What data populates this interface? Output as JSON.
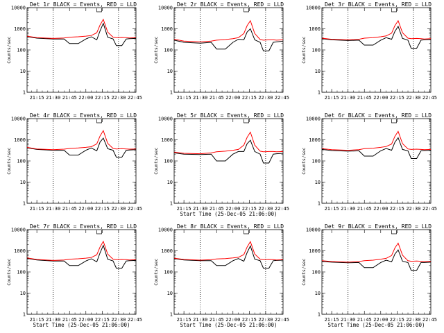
{
  "page": {
    "x_tick_labels": [
      "21:15",
      "21:30",
      "21:45",
      "22:00",
      "22:15",
      "22:30",
      "22:45"
    ],
    "y_tick_labels": [
      "1",
      "10",
      "100",
      "1000",
      "10000"
    ]
  },
  "colors": {
    "events": "#000000",
    "lld": "#ff0000",
    "background": "#ffffff"
  },
  "chart_data": [
    {
      "type": "line",
      "title": "Det 1r BLACK = Events, RED = LLD",
      "ylabel": "Counts/sec",
      "xlabel": "",
      "yscale": "log",
      "ylim": [
        1,
        10000
      ],
      "xlim": [
        "21:06",
        "22:46"
      ],
      "x": [
        "21:06",
        "21:15",
        "21:30",
        "21:40",
        "21:45",
        "21:53",
        "22:00",
        "22:05",
        "22:10",
        "22:13",
        "22:16",
        "22:20",
        "22:25",
        "22:28",
        "22:33",
        "22:37",
        "22:40",
        "22:46"
      ],
      "series": [
        {
          "name": "BLACK = Events",
          "values": [
            430,
            360,
            330,
            330,
            200,
            200,
            330,
            420,
            300,
            800,
            1800,
            400,
            330,
            160,
            160,
            330,
            340,
            350
          ]
        },
        {
          "name": "RED = LLD",
          "values": [
            450,
            380,
            350,
            370,
            400,
            420,
            450,
            480,
            650,
            1500,
            2800,
            700,
            400,
            380,
            390,
            380,
            370,
            380
          ]
        }
      ],
      "markers": [
        "21:30",
        "22:30"
      ]
    },
    {
      "type": "line",
      "title": "Det 2r BLACK = Events, RED = LLD",
      "ylabel": "Counts/sec",
      "xlabel": "",
      "yscale": "log",
      "ylim": [
        1,
        10000
      ],
      "xlim": [
        "21:06",
        "22:46"
      ],
      "x": [
        "21:06",
        "21:15",
        "21:30",
        "21:40",
        "21:45",
        "21:53",
        "22:00",
        "22:05",
        "22:10",
        "22:13",
        "22:16",
        "22:20",
        "22:25",
        "22:28",
        "22:33",
        "22:37",
        "22:40",
        "22:46"
      ],
      "series": [
        {
          "name": "BLACK = Events",
          "values": [
            290,
            230,
            210,
            230,
            110,
            110,
            230,
            320,
            300,
            700,
            1000,
            300,
            230,
            90,
            90,
            230,
            240,
            260
          ]
        },
        {
          "name": "RED = LLD",
          "values": [
            320,
            260,
            240,
            260,
            290,
            310,
            340,
            380,
            600,
            1400,
            2400,
            600,
            310,
            290,
            300,
            300,
            290,
            300
          ]
        }
      ],
      "markers": [
        "21:30",
        "22:30"
      ]
    },
    {
      "type": "line",
      "title": "Det 3r BLACK = Events, RED = LLD",
      "ylabel": "Counts/sec",
      "xlabel": "",
      "yscale": "log",
      "ylim": [
        1,
        10000
      ],
      "xlim": [
        "21:06",
        "22:46"
      ],
      "x": [
        "21:06",
        "21:15",
        "21:30",
        "21:40",
        "21:45",
        "21:53",
        "22:00",
        "22:05",
        "22:10",
        "22:13",
        "22:16",
        "22:20",
        "22:25",
        "22:28",
        "22:33",
        "22:37",
        "22:40",
        "22:46"
      ],
      "series": [
        {
          "name": "BLACK = Events",
          "values": [
            340,
            300,
            280,
            290,
            170,
            170,
            290,
            380,
            320,
            750,
            1300,
            350,
            290,
            120,
            120,
            290,
            300,
            310
          ]
        },
        {
          "name": "RED = LLD",
          "values": [
            360,
            320,
            300,
            320,
            360,
            380,
            420,
            460,
            620,
            1400,
            2400,
            650,
            360,
            340,
            350,
            340,
            330,
            340
          ]
        }
      ],
      "markers": [
        "21:30",
        "22:30"
      ]
    },
    {
      "type": "line",
      "title": "Det 4r BLACK = Events, RED = LLD",
      "ylabel": "Counts/sec",
      "xlabel": "",
      "yscale": "log",
      "ylim": [
        1,
        10000
      ],
      "xlim": [
        "21:06",
        "22:46"
      ],
      "x": [
        "21:06",
        "21:15",
        "21:30",
        "21:40",
        "21:45",
        "21:53",
        "22:00",
        "22:05",
        "22:10",
        "22:13",
        "22:16",
        "22:20",
        "22:25",
        "22:28",
        "22:33",
        "22:37",
        "22:40",
        "22:46"
      ],
      "series": [
        {
          "name": "BLACK = Events",
          "values": [
            420,
            350,
            320,
            320,
            190,
            190,
            320,
            410,
            300,
            780,
            1200,
            380,
            320,
            150,
            150,
            320,
            330,
            340
          ]
        },
        {
          "name": "RED = LLD",
          "values": [
            440,
            370,
            340,
            360,
            390,
            410,
            440,
            470,
            640,
            1500,
            2700,
            680,
            390,
            370,
            380,
            370,
            360,
            370
          ]
        }
      ],
      "markers": [
        "21:30",
        "22:30"
      ]
    },
    {
      "type": "line",
      "title": "Det 5r BLACK = Events, RED = LLD",
      "ylabel": "Counts/sec",
      "xlabel": "",
      "yscale": "log",
      "ylim": [
        1,
        10000
      ],
      "xlim": [
        "21:06",
        "22:46"
      ],
      "x": [
        "21:06",
        "21:15",
        "21:30",
        "21:40",
        "21:45",
        "21:53",
        "22:00",
        "22:05",
        "22:10",
        "22:13",
        "22:16",
        "22:20",
        "22:25",
        "22:28",
        "22:33",
        "22:37",
        "22:40",
        "22:46"
      ],
      "series": [
        {
          "name": "BLACK = Events",
          "values": [
            240,
            210,
            200,
            210,
            100,
            100,
            210,
            280,
            280,
            650,
            950,
            280,
            210,
            80,
            80,
            210,
            220,
            230
          ]
        },
        {
          "name": "RED = LLD",
          "values": [
            260,
            230,
            220,
            240,
            270,
            290,
            320,
            350,
            560,
            1300,
            2300,
            560,
            290,
            270,
            280,
            280,
            270,
            280
          ]
        }
      ],
      "markers": [
        "21:30",
        "22:30"
      ]
    },
    {
      "type": "line",
      "title": "Det 6r BLACK = Events, RED = LLD",
      "ylabel": "Counts/sec",
      "xlabel": "",
      "yscale": "log",
      "ylim": [
        1,
        10000
      ],
      "xlim": [
        "21:06",
        "22:46"
      ],
      "x": [
        "21:06",
        "21:15",
        "21:30",
        "21:40",
        "21:45",
        "21:53",
        "22:00",
        "22:05",
        "22:10",
        "22:13",
        "22:16",
        "22:20",
        "22:25",
        "22:28",
        "22:33",
        "22:37",
        "22:40",
        "22:46"
      ],
      "series": [
        {
          "name": "BLACK = Events",
          "values": [
            350,
            310,
            290,
            300,
            170,
            170,
            300,
            390,
            320,
            760,
            1250,
            350,
            300,
            130,
            130,
            300,
            310,
            320
          ]
        },
        {
          "name": "RED = LLD",
          "values": [
            380,
            340,
            320,
            340,
            380,
            400,
            440,
            480,
            630,
            1450,
            2500,
            660,
            370,
            350,
            360,
            350,
            340,
            350
          ]
        }
      ],
      "markers": [
        "21:30",
        "22:30"
      ]
    },
    {
      "type": "line",
      "title": "Det 7r BLACK = Events, RED = LLD",
      "ylabel": "Counts/sec",
      "xlabel": "",
      "yscale": "log",
      "ylim": [
        1,
        10000
      ],
      "xlim": [
        "21:06",
        "22:46"
      ],
      "x": [
        "21:06",
        "21:15",
        "21:30",
        "21:40",
        "21:45",
        "21:53",
        "22:00",
        "22:05",
        "22:10",
        "22:13",
        "22:16",
        "22:20",
        "22:25",
        "22:28",
        "22:33",
        "22:37",
        "22:40",
        "22:46"
      ],
      "series": [
        {
          "name": "BLACK = Events",
          "values": [
            440,
            370,
            330,
            330,
            200,
            200,
            330,
            420,
            300,
            800,
            1800,
            400,
            330,
            150,
            150,
            330,
            340,
            350
          ]
        },
        {
          "name": "RED = LLD",
          "values": [
            460,
            390,
            350,
            370,
            400,
            420,
            450,
            480,
            650,
            1500,
            2800,
            700,
            400,
            380,
            390,
            380,
            370,
            380
          ]
        }
      ],
      "markers": [
        "21:30",
        "22:30"
      ]
    },
    {
      "type": "line",
      "title": "Det 8r BLACK = Events, RED = LLD",
      "ylabel": "Counts/sec",
      "xlabel": "",
      "yscale": "log",
      "ylim": [
        1,
        10000
      ],
      "xlim": [
        "21:06",
        "22:46"
      ],
      "x": [
        "21:06",
        "21:15",
        "21:30",
        "21:40",
        "21:45",
        "21:53",
        "22:00",
        "22:05",
        "22:10",
        "22:13",
        "22:16",
        "22:20",
        "22:25",
        "22:28",
        "22:33",
        "22:37",
        "22:40",
        "22:46"
      ],
      "series": [
        {
          "name": "BLACK = Events",
          "values": [
            430,
            370,
            340,
            340,
            200,
            200,
            340,
            430,
            320,
            820,
            1700,
            400,
            340,
            150,
            150,
            340,
            350,
            360
          ]
        },
        {
          "name": "RED = LLD",
          "values": [
            450,
            390,
            360,
            380,
            410,
            430,
            460,
            490,
            660,
            1500,
            2700,
            700,
            400,
            380,
            390,
            380,
            370,
            380
          ]
        }
      ],
      "markers": [
        "21:30",
        "22:30"
      ]
    },
    {
      "type": "line",
      "title": "Det 9r BLACK = Events, RED = LLD",
      "ylabel": "Counts/sec",
      "xlabel": "",
      "yscale": "log",
      "ylim": [
        1,
        10000
      ],
      "xlim": [
        "21:06",
        "22:46"
      ],
      "x": [
        "21:06",
        "21:15",
        "21:30",
        "21:40",
        "21:45",
        "21:53",
        "22:00",
        "22:05",
        "22:10",
        "22:13",
        "22:16",
        "22:20",
        "22:25",
        "22:28",
        "22:33",
        "22:37",
        "22:40",
        "22:46"
      ],
      "series": [
        {
          "name": "BLACK = Events",
          "values": [
            310,
            290,
            270,
            280,
            160,
            160,
            280,
            360,
            300,
            700,
            1100,
            320,
            280,
            120,
            120,
            280,
            280,
            290
          ]
        },
        {
          "name": "RED = LLD",
          "values": [
            340,
            310,
            290,
            310,
            340,
            360,
            400,
            440,
            600,
            1350,
            2300,
            620,
            340,
            320,
            330,
            320,
            310,
            320
          ]
        }
      ],
      "markers": [
        "21:30",
        "22:30"
      ]
    }
  ],
  "xlabels": [
    "",
    "",
    "",
    "",
    "Start Time (25-Dec-05 21:06:00)",
    "",
    "Start Time (25-Dec-05 21:06:00)",
    "Start Time (25-Dec-05 21:06:00)",
    "Start Time (25-Dec-05 21:06:00)"
  ]
}
